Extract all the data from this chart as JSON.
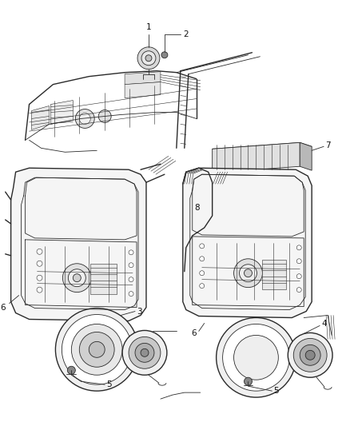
{
  "background_color": "#ffffff",
  "fig_width": 4.38,
  "fig_height": 5.33,
  "dpi": 100,
  "line_color": "#2a2a2a",
  "label_color": "#111111",
  "label_fontsize": 7.5,
  "gray_light": "#cccccc",
  "gray_mid": "#aaaaaa",
  "gray_dark": "#888888"
}
